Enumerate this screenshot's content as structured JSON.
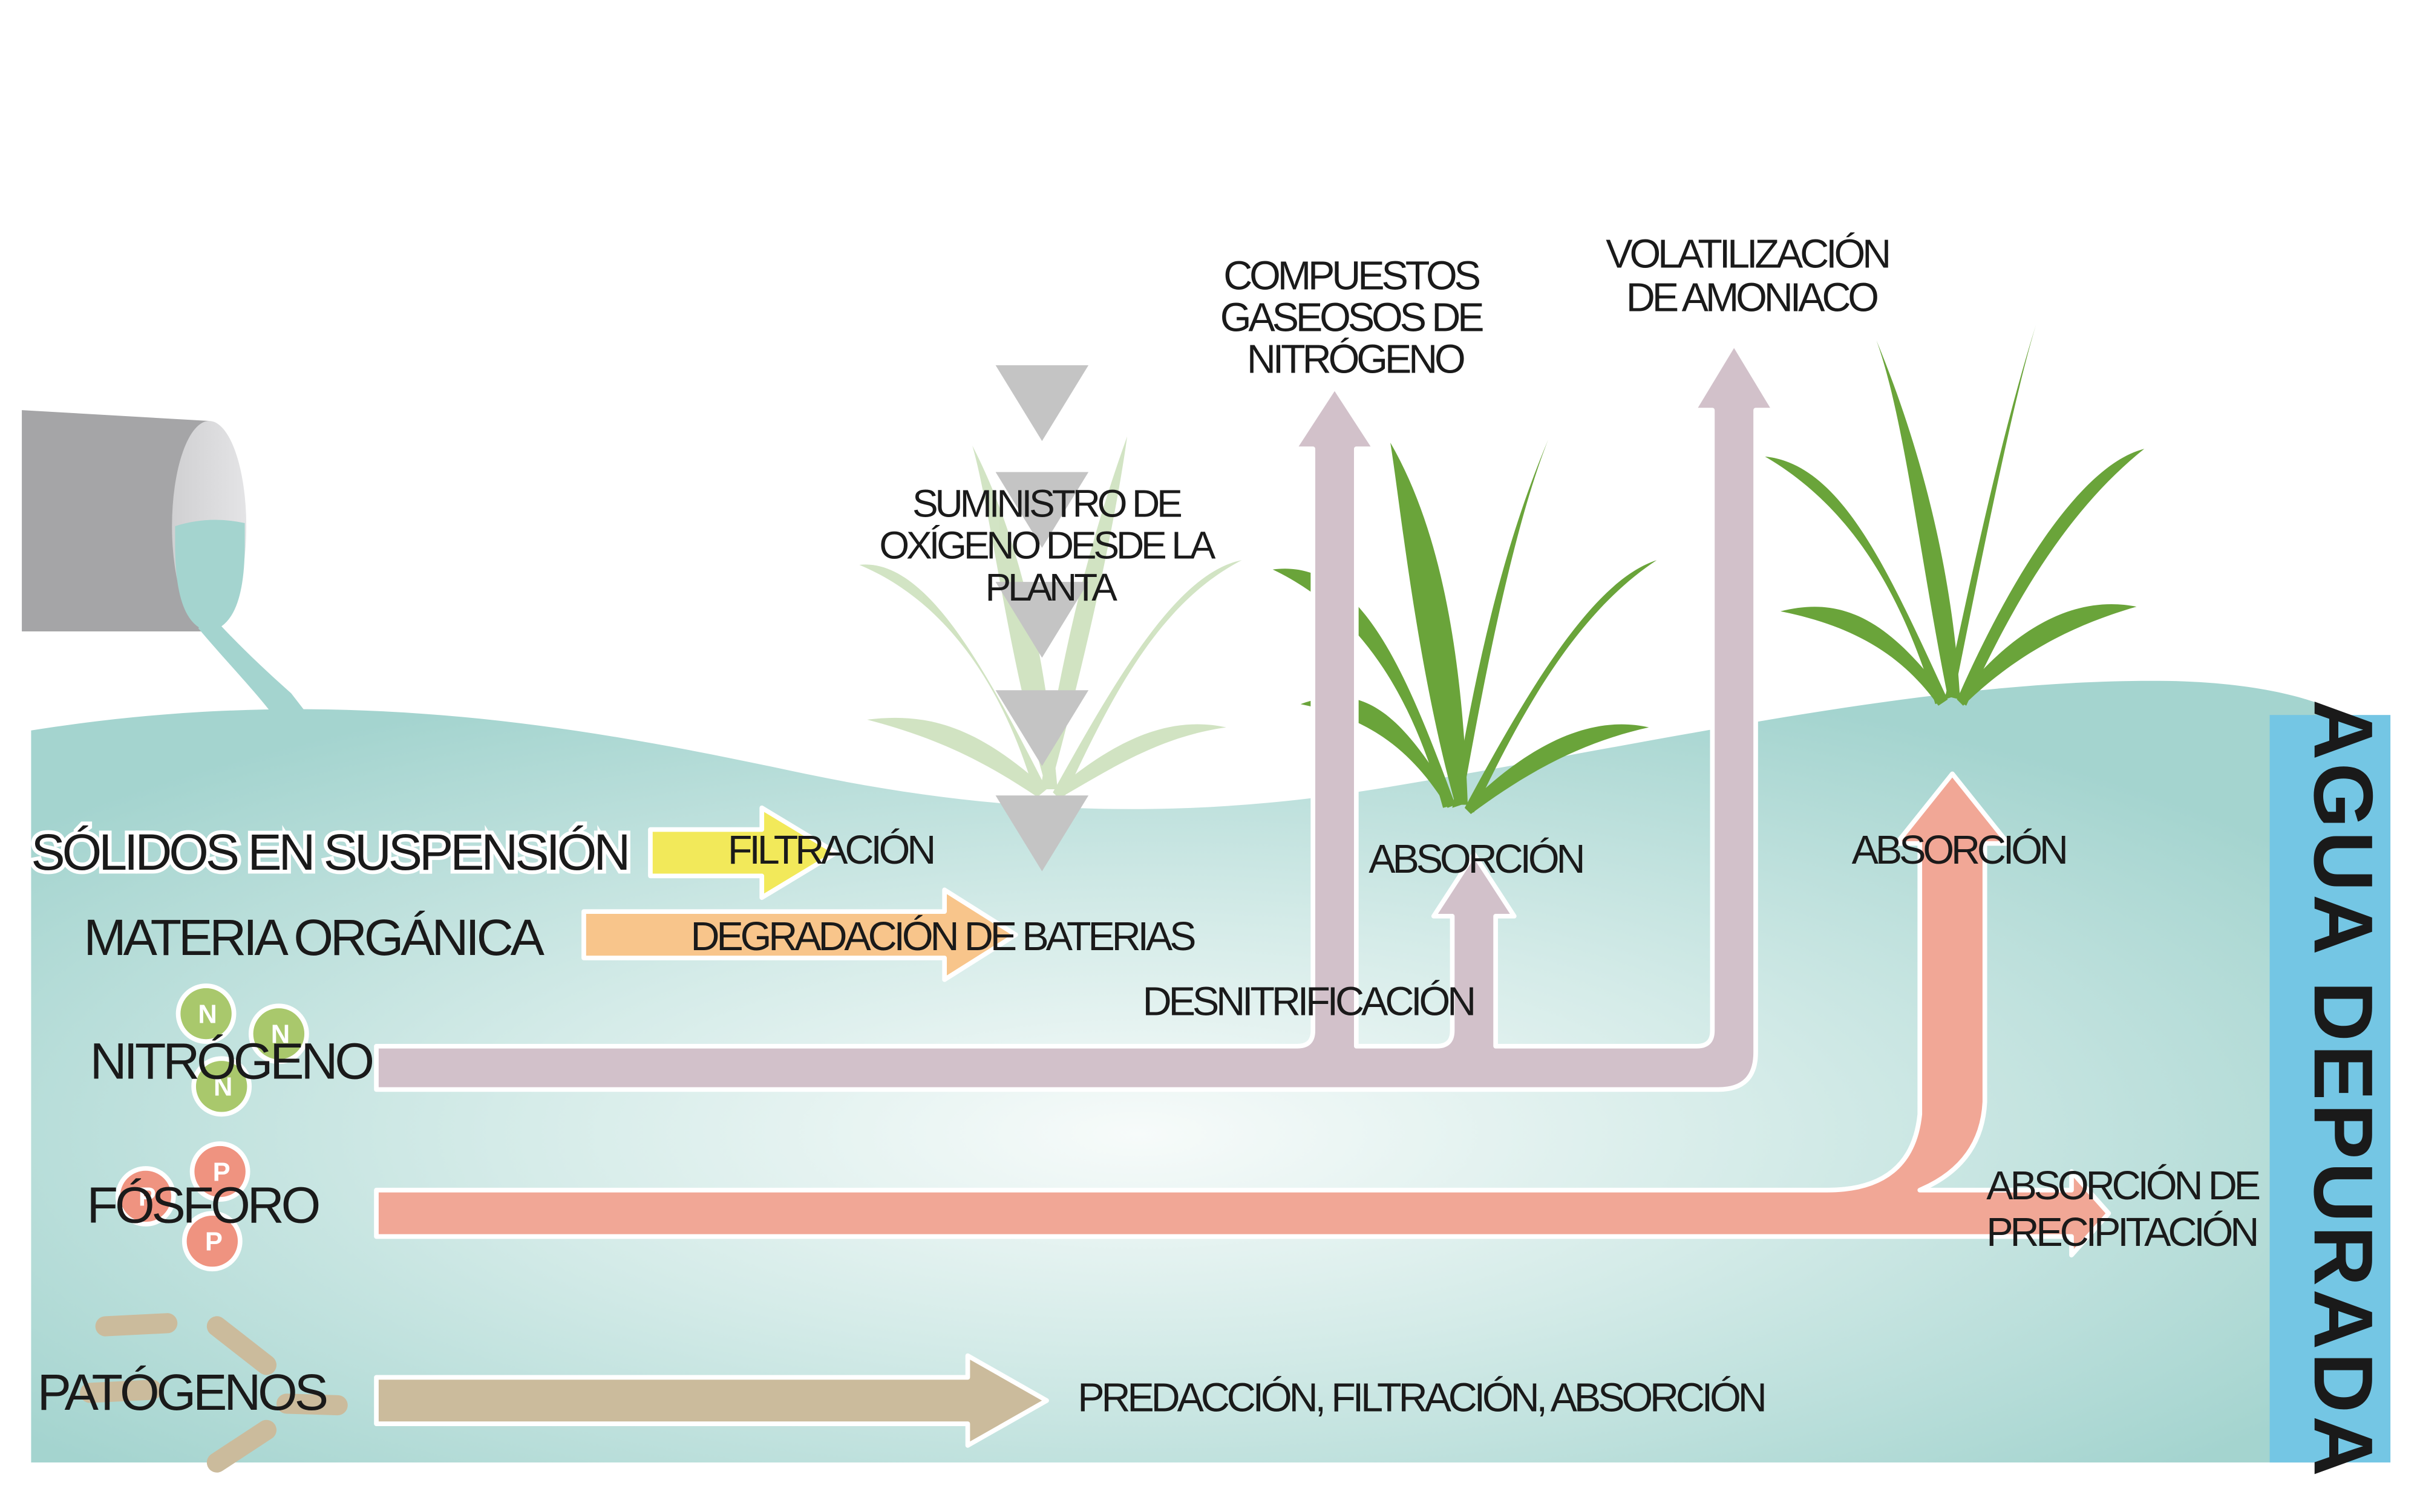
{
  "labels": {
    "gas_compounds": [
      "COMPUESTOS",
      "GASEOSOS DE",
      "NITRÓGENO"
    ],
    "volatilization": [
      "VOLATILIZACIÓN",
      "DE AMONIACO"
    ],
    "oxygen_supply": [
      "SUMINISTRO DE",
      "OXÍGENO DESDE LA",
      "PLANTA"
    ],
    "solids": "SÓLIDOS EN SUSPENSIÓN",
    "filtration": "FILTRACIÓN",
    "organic": "MATERIA ORGÁNICA",
    "degradation": "DEGRADACIÓN DE BATERIAS",
    "absorption_mid": "ABSORCIÓN",
    "absorption_right": "ABSORCIÓN",
    "denitrification": "DESNITRIFICACIÓN",
    "nitrogen": "NITRÓGENO",
    "phosphorus": "FÓSFORO",
    "pathogens": "PATÓGENOS",
    "absorption_precip": [
      "ABSORCIÓN DE",
      "PRECIPITACIÓN"
    ],
    "pathogen_process": "PREDACCIÓN, FILTRACIÓN, ABSORCIÓN",
    "clean_water": "AGUA DEPURADA",
    "nitrogen_symbol": "N",
    "phosphorus_symbol": "P"
  },
  "colors": {
    "water": "#a4d4cf",
    "clean_water_band": "#74c6e4",
    "pipe_grey": "#a5a5a7",
    "nitrogen_arrow": "#d2c1ca",
    "phosphorus_arrow": "#f1a796",
    "pathogen_arrow": "#cbbb9c",
    "filtration_arrow": "#f2e95a",
    "organic_arrow": "#f8c58b",
    "plant_green": "#6aa43a",
    "nitrogen_ball": "#a9c86c",
    "oxygen_triangle": "#c4c4c4"
  }
}
